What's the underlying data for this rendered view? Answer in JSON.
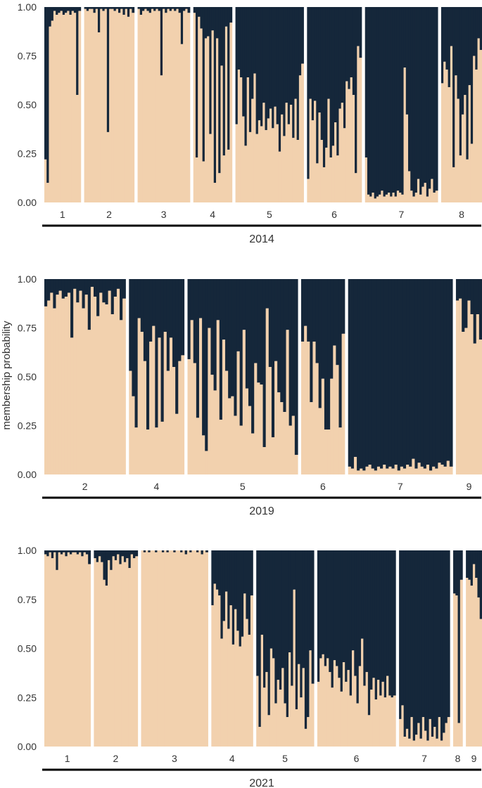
{
  "chart_data": {
    "type": "bar",
    "stacked": true,
    "ylabel": "membership probability",
    "ylim": [
      0,
      1
    ],
    "yticks": [
      "0.00",
      "0.25",
      "0.50",
      "0.75",
      "1.00"
    ],
    "colors": {
      "lower": "#F2D1AE",
      "upper": "#15273A"
    },
    "panels": [
      {
        "year": "2014",
        "groups": [
          {
            "label": "1",
            "values": [
              0.22,
              0.1,
              0.9,
              0.93,
              0.98,
              0.96,
              0.97,
              0.98,
              0.96,
              0.97,
              0.98,
              0.96,
              0.98,
              0.97,
              0.55,
              0.98
            ]
          },
          {
            "label": "2",
            "values": [
              0.99,
              0.98,
              0.99,
              0.99,
              0.97,
              0.99,
              0.87,
              0.99,
              0.98,
              0.99,
              0.36,
              0.99,
              0.99,
              0.98,
              0.99,
              0.97,
              0.99,
              0.96,
              0.99,
              0.95,
              0.99,
              0.97
            ]
          },
          {
            "label": "3",
            "values": [
              0.99,
              0.96,
              0.98,
              0.99,
              0.98,
              0.97,
              0.99,
              0.98,
              0.99,
              0.98,
              0.65,
              0.99,
              0.97,
              0.99,
              0.98,
              0.99,
              0.98,
              0.99,
              0.97,
              0.81,
              0.98,
              0.99,
              0.97
            ]
          },
          {
            "label": "4",
            "values": [
              0.97,
              0.23,
              0.95,
              0.89,
              0.21,
              0.84,
              0.85,
              0.35,
              0.88,
              0.1,
              0.84,
              0.15,
              0.7,
              0.24,
              0.9,
              0.27,
              0.92
            ]
          },
          {
            "label": "5",
            "values": [
              0.4,
              0.68,
              0.64,
              0.44,
              0.29,
              0.64,
              0.36,
              0.53,
              0.66,
              0.35,
              0.42,
              0.39,
              0.51,
              0.37,
              0.43,
              0.48,
              0.38,
              0.49,
              0.4,
              0.26,
              0.45,
              0.34,
              0.51,
              0.4,
              0.5,
              0.33,
              0.53,
              0.32,
              0.65,
              0.71
            ]
          },
          {
            "label": "6",
            "values": [
              0.12,
              0.53,
              0.42,
              0.52,
              0.2,
              0.46,
              0.32,
              0.18,
              0.28,
              0.53,
              0.23,
              0.29,
              0.41,
              0.24,
              0.48,
              0.51,
              0.38,
              0.62,
              0.58,
              0.64,
              0.55,
              0.15,
              0.8,
              0.74
            ]
          },
          {
            "label": "7",
            "values": [
              0.23,
              0.04,
              0.03,
              0.05,
              0.02,
              0.03,
              0.04,
              0.06,
              0.03,
              0.04,
              0.05,
              0.03,
              0.05,
              0.03,
              0.06,
              0.05,
              0.04,
              0.69,
              0.45,
              0.16,
              0.06,
              0.03,
              0.05,
              0.12,
              0.04,
              0.08,
              0.1,
              0.03,
              0.07,
              0.12,
              0.05,
              0.06
            ]
          },
          {
            "label": "8",
            "values": [
              0.61,
              0.72,
              0.68,
              0.59,
              0.8,
              0.18,
              0.65,
              0.53,
              0.24,
              0.45,
              0.55,
              0.22,
              0.6,
              0.3,
              0.75,
              0.68,
              0.84,
              0.78
            ]
          }
        ]
      },
      {
        "year": "2019",
        "groups": [
          {
            "label": "2",
            "values": [
              0.86,
              0.89,
              0.93,
              0.85,
              0.92,
              0.94,
              0.9,
              0.91,
              0.93,
              0.7,
              0.95,
              0.88,
              0.94,
              0.85,
              0.92,
              0.74,
              0.96,
              0.91,
              0.81,
              0.93,
              0.88,
              0.87,
              0.94,
              0.82,
              0.91,
              0.95,
              0.79,
              0.9
            ]
          },
          {
            "label": "4",
            "values": [
              0.53,
              0.4,
              0.24,
              0.8,
              0.73,
              0.58,
              0.23,
              0.68,
              0.76,
              0.24,
              0.7,
              0.27,
              0.73,
              0.53,
              0.7,
              0.55,
              0.31,
              0.58,
              0.61
            ]
          },
          {
            "label": "5",
            "values": [
              0.59,
              0.79,
              0.57,
              0.29,
              0.8,
              0.2,
              0.12,
              0.75,
              0.51,
              0.43,
              0.79,
              0.28,
              0.69,
              0.53,
              0.39,
              0.4,
              0.3,
              0.63,
              0.25,
              0.74,
              0.44,
              0.35,
              0.21,
              0.57,
              0.47,
              0.46,
              0.14,
              0.85,
              0.55,
              0.19,
              0.58,
              0.42,
              0.37,
              0.32,
              0.74,
              0.25,
              0.3,
              0.1
            ]
          },
          {
            "label": "6",
            "values": [
              0.68,
              0.76,
              0.68,
              0.37,
              0.68,
              0.57,
              0.34,
              0.49,
              0.23,
              0.23,
              0.49,
              0.66,
              0.56,
              0.24,
              0.72
            ]
          },
          {
            "label": "7",
            "values": [
              0.04,
              0.03,
              0.09,
              0.02,
              0.03,
              0.02,
              0.04,
              0.05,
              0.03,
              0.02,
              0.04,
              0.03,
              0.05,
              0.03,
              0.04,
              0.03,
              0.05,
              0.02,
              0.04,
              0.03,
              0.05,
              0.04,
              0.08,
              0.03,
              0.06,
              0.04,
              0.03,
              0.05,
              0.02,
              0.04,
              0.03,
              0.06,
              0.05,
              0.04,
              0.07,
              0.04
            ]
          },
          {
            "label": "9",
            "values": [
              0.89,
              0.9,
              0.73,
              0.75,
              0.89,
              0.82,
              0.67,
              0.82,
              0.69
            ]
          }
        ]
      },
      {
        "year": "2021",
        "groups": [
          {
            "label": "1",
            "values": [
              0.98,
              0.97,
              0.99,
              0.96,
              0.99,
              0.9,
              0.99,
              0.98,
              0.99,
              0.97,
              0.99,
              0.98,
              0.99,
              0.99,
              0.98,
              0.99,
              0.97,
              0.99,
              0.98,
              0.93
            ]
          },
          {
            "label": "2",
            "values": [
              0.96,
              0.94,
              0.97,
              0.94,
              0.85,
              0.82,
              0.95,
              0.9,
              0.97,
              0.95,
              0.98,
              0.93,
              0.97,
              0.94,
              0.96,
              0.91,
              0.98,
              0.96,
              0.97
            ]
          },
          {
            "label": "3",
            "values": [
              1.0,
              0.99,
              1.0,
              0.99,
              1.0,
              1.0,
              0.99,
              1.0,
              1.0,
              0.99,
              1.0,
              0.99,
              1.0,
              1.0,
              0.99,
              1.0,
              1.0,
              0.99,
              1.0,
              0.98,
              1.0,
              0.99,
              1.0,
              1.0,
              0.99,
              1.0,
              0.98,
              1.0,
              0.99
            ]
          },
          {
            "label": "4",
            "values": [
              0.72,
              0.83,
              0.8,
              0.77,
              0.55,
              0.64,
              0.79,
              0.6,
              0.72,
              0.52,
              0.7,
              0.59,
              0.51,
              0.56,
              0.78,
              0.65,
              0.57,
              0.77
            ]
          },
          {
            "label": "5",
            "values": [
              0.36,
              0.1,
              0.57,
              0.3,
              0.38,
              0.16,
              0.5,
              0.45,
              0.22,
              0.34,
              0.29,
              0.4,
              0.22,
              0.15,
              0.48,
              0.31,
              0.8,
              0.19,
              0.42,
              0.25,
              0.4,
              0.09,
              0.15,
              0.49,
              0.32
            ]
          },
          {
            "label": "6",
            "values": [
              0.33,
              0.45,
              0.47,
              0.41,
              0.45,
              0.38,
              0.3,
              0.44,
              0.41,
              0.35,
              0.28,
              0.43,
              0.33,
              0.39,
              0.26,
              0.49,
              0.36,
              0.22,
              0.41,
              0.55,
              0.31,
              0.38,
              0.16,
              0.29,
              0.35,
              0.24,
              0.34,
              0.26,
              0.33,
              0.25,
              0.36,
              0.26,
              0.25,
              0.26
            ]
          },
          {
            "label": "7",
            "values": [
              0.14,
              0.21,
              0.05,
              0.09,
              0.04,
              0.15,
              0.03,
              0.06,
              0.12,
              0.04,
              0.15,
              0.08,
              0.03,
              0.14,
              0.05,
              0.1,
              0.04,
              0.15,
              0.03,
              0.07,
              0.12,
              0.15
            ]
          },
          {
            "label": "8",
            "values": [
              0.78,
              0.77,
              0.12,
              0.85
            ]
          },
          {
            "label": "9",
            "values": [
              0.86,
              0.85,
              0.82,
              0.93,
              0.86,
              0.76,
              0.65
            ]
          }
        ]
      }
    ]
  }
}
